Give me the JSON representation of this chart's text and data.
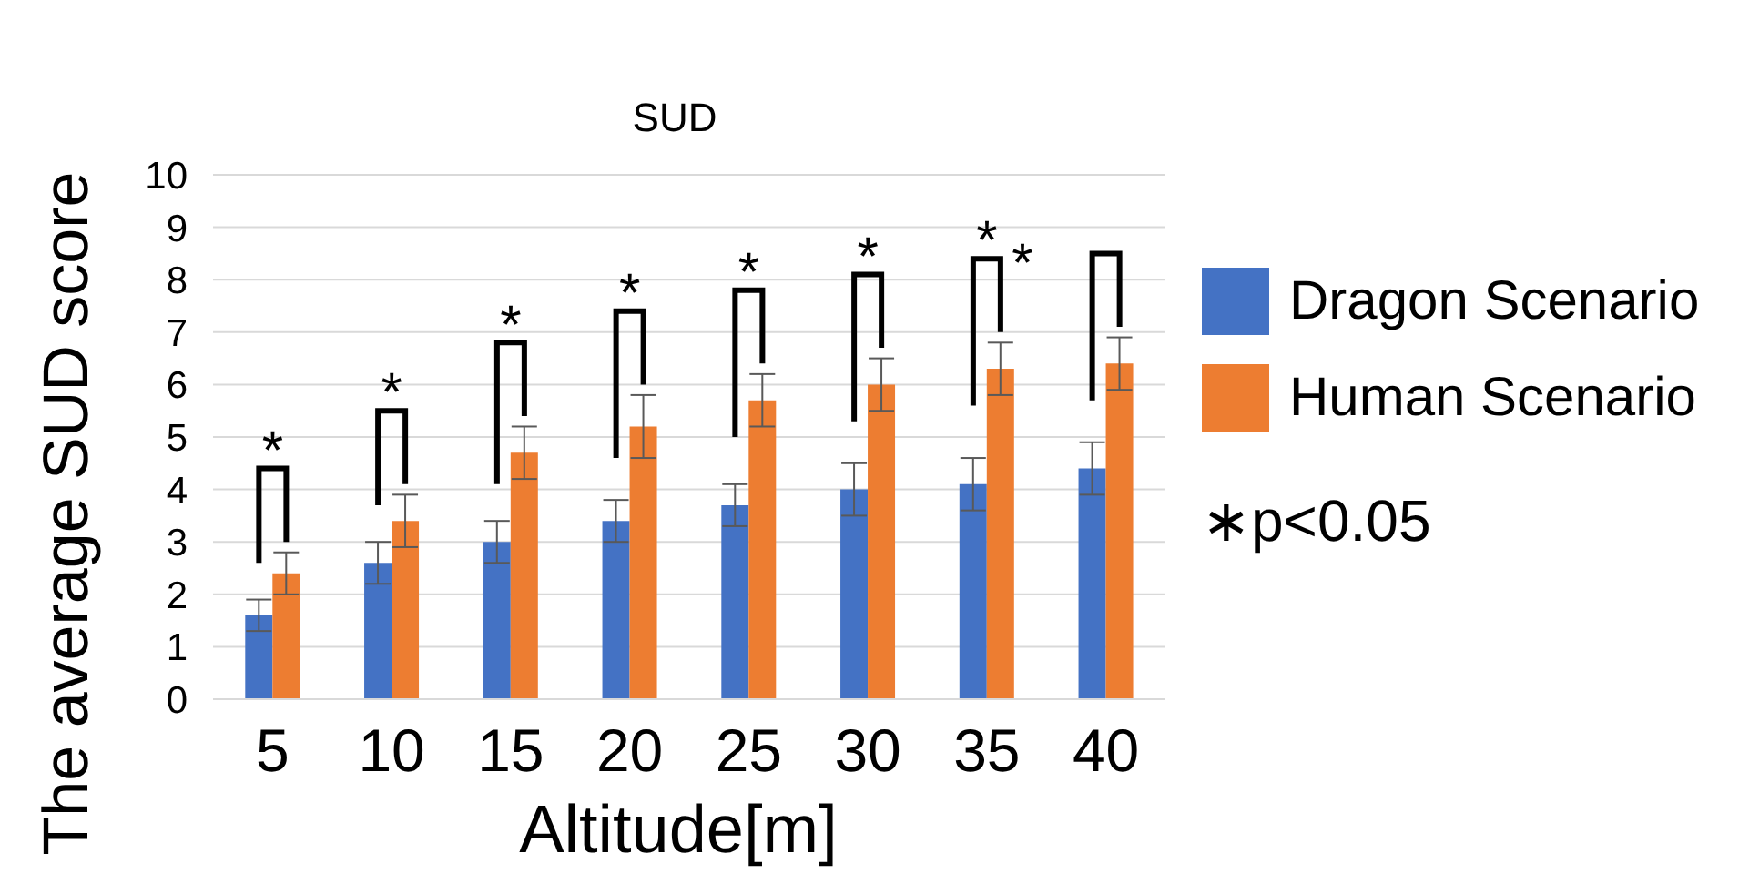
{
  "chart_data": {
    "type": "bar",
    "title": "SUD",
    "xlabel": "Altitude[m]",
    "ylabel": "The average SUD score",
    "categories": [
      "5",
      "10",
      "15",
      "20",
      "25",
      "30",
      "35",
      "40"
    ],
    "series": [
      {
        "name": "Dragon Scenario",
        "color": "#4472c4",
        "values": [
          1.6,
          2.6,
          3.0,
          3.4,
          3.7,
          4.0,
          4.1,
          4.4
        ],
        "errors": [
          0.3,
          0.4,
          0.4,
          0.4,
          0.4,
          0.5,
          0.5,
          0.5
        ]
      },
      {
        "name": "Human Scenario",
        "color": "#ed7d31",
        "values": [
          2.4,
          3.4,
          4.7,
          5.2,
          5.7,
          6.0,
          6.3,
          6.4
        ],
        "errors": [
          0.4,
          0.5,
          0.5,
          0.6,
          0.5,
          0.5,
          0.5,
          0.5
        ]
      }
    ],
    "ylim": [
      0,
      10
    ],
    "yticks": [
      0,
      1,
      2,
      3,
      4,
      5,
      6,
      7,
      8,
      9,
      10
    ],
    "grid": "y",
    "legend": "right",
    "annotations": [
      "*",
      "*",
      "*",
      "*",
      "*",
      "*",
      "*",
      "*",
      "∗p<0.05"
    ]
  }
}
